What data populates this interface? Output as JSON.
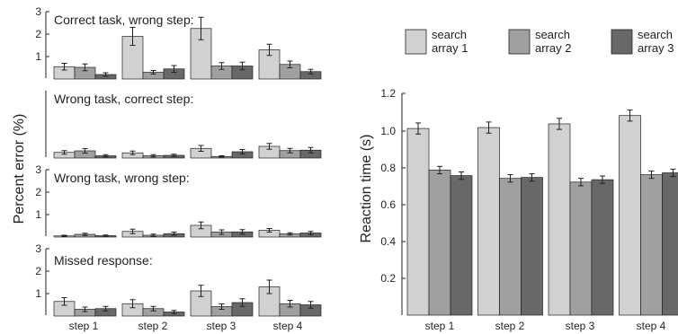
{
  "colors": {
    "search_array_1": "#d1d1d1",
    "search_array_2": "#a0a0a0",
    "search_array_3": "#686868",
    "axis": "#231f20",
    "background": "#ffffff"
  },
  "chart_data": [
    {
      "id": "error-correct-task-wrong-step",
      "type": "bar",
      "title": "Correct task, wrong step:",
      "ylabel": "Percent error (%)",
      "xlabel": "",
      "ylim": [
        0,
        3
      ],
      "yticks": [
        "1",
        "2",
        "3"
      ],
      "categories": [
        "step 1",
        "step 2",
        "step 3",
        "step 4"
      ],
      "series": [
        {
          "name": "search array 1",
          "values": [
            0.55,
            1.9,
            2.25,
            1.3
          ],
          "errors": [
            0.15,
            0.4,
            0.5,
            0.25
          ]
        },
        {
          "name": "search array 2",
          "values": [
            0.52,
            0.3,
            0.58,
            0.65
          ],
          "errors": [
            0.15,
            0.08,
            0.15,
            0.15
          ]
        },
        {
          "name": "search array 3",
          "values": [
            0.2,
            0.45,
            0.58,
            0.33
          ],
          "errors": [
            0.08,
            0.15,
            0.17,
            0.1
          ]
        }
      ]
    },
    {
      "id": "error-wrong-task-correct-step",
      "type": "bar",
      "title": "Wrong task, correct step:",
      "ylim": [
        0,
        3
      ],
      "yticks": [
        "1",
        "2",
        "3"
      ],
      "categories": [
        "step 1",
        "step 2",
        "step 3",
        "step 4"
      ],
      "series": [
        {
          "name": "search array 1",
          "values": [
            0.25,
            0.23,
            0.43,
            0.52
          ],
          "errors": [
            0.08,
            0.08,
            0.13,
            0.13
          ]
        },
        {
          "name": "search array 2",
          "values": [
            0.32,
            0.1,
            0.07,
            0.33
          ],
          "errors": [
            0.1,
            0.05,
            0.03,
            0.1
          ]
        },
        {
          "name": "search array 3",
          "values": [
            0.1,
            0.12,
            0.28,
            0.35
          ],
          "errors": [
            0.05,
            0.05,
            0.1,
            0.12
          ]
        }
      ]
    },
    {
      "id": "error-wrong-task-wrong-step",
      "type": "bar",
      "title": "Wrong task, wrong step:",
      "ylim": [
        0,
        3
      ],
      "yticks": [
        "1",
        "2",
        "3"
      ],
      "categories": [
        "step 1",
        "step 2",
        "step 3",
        "step 4"
      ],
      "series": [
        {
          "name": "search array 1",
          "values": [
            0.05,
            0.25,
            0.52,
            0.3
          ],
          "errors": [
            0.03,
            0.1,
            0.15,
            0.08
          ]
        },
        {
          "name": "search array 2",
          "values": [
            0.12,
            0.08,
            0.22,
            0.14
          ],
          "errors": [
            0.05,
            0.05,
            0.1,
            0.05
          ]
        },
        {
          "name": "search array 3",
          "values": [
            0.06,
            0.15,
            0.23,
            0.18
          ],
          "errors": [
            0.03,
            0.07,
            0.1,
            0.07
          ]
        }
      ]
    },
    {
      "id": "error-missed-response",
      "type": "bar",
      "title": "Missed response:",
      "ylim": [
        0,
        3
      ],
      "yticks": [
        "1",
        "2",
        "3"
      ],
      "categories": [
        "step 1",
        "step 2",
        "step 3",
        "step 4"
      ],
      "series": [
        {
          "name": "search array 1",
          "values": [
            0.65,
            0.55,
            1.12,
            1.3
          ],
          "errors": [
            0.17,
            0.18,
            0.25,
            0.3
          ]
        },
        {
          "name": "search array 2",
          "values": [
            0.3,
            0.33,
            0.42,
            0.55
          ],
          "errors": [
            0.1,
            0.1,
            0.12,
            0.15
          ]
        },
        {
          "name": "search array 3",
          "values": [
            0.33,
            0.18,
            0.6,
            0.5
          ],
          "errors": [
            0.1,
            0.07,
            0.17,
            0.15
          ]
        }
      ]
    },
    {
      "id": "reaction-time",
      "type": "bar",
      "title": "",
      "ylabel": "Reaction time (s)",
      "xlabel": "",
      "ylim": [
        0,
        1.2
      ],
      "yticks": [
        "0.2",
        "0.4",
        "0.6",
        "0.8",
        "1.0",
        "1.2"
      ],
      "categories": [
        "step 1",
        "step 2",
        "step 3",
        "step 4"
      ],
      "legend": "top",
      "legend_entries": [
        {
          "line1": "search",
          "line2": "array 1"
        },
        {
          "line1": "search",
          "line2": "array 2"
        },
        {
          "line1": "search",
          "line2": "array 3"
        }
      ],
      "series": [
        {
          "name": "search array 1",
          "values": [
            1.01,
            1.015,
            1.035,
            1.08
          ],
          "errors": [
            0.03,
            0.03,
            0.03,
            0.03
          ]
        },
        {
          "name": "search array 2",
          "values": [
            0.785,
            0.74,
            0.72,
            0.76
          ],
          "errors": [
            0.02,
            0.02,
            0.02,
            0.02
          ]
        },
        {
          "name": "search array 3",
          "values": [
            0.755,
            0.745,
            0.733,
            0.77
          ],
          "errors": [
            0.02,
            0.02,
            0.02,
            0.02
          ]
        }
      ]
    }
  ]
}
